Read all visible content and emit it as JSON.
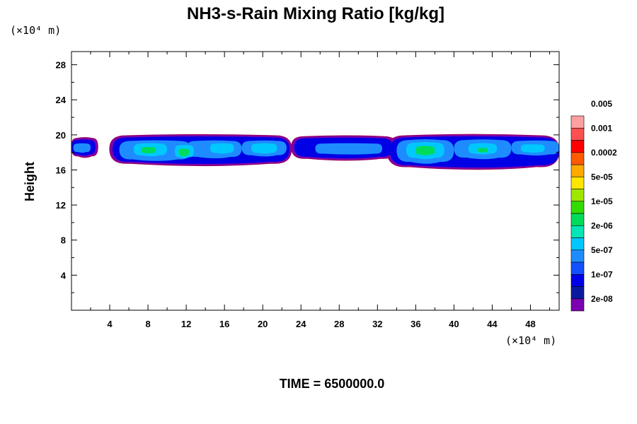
{
  "chart_data": {
    "type": "heatmap",
    "title": "NH3-s-Rain Mixing Ratio [kg/kg]",
    "ylabel": "Height",
    "x_unit_label": "(×10⁴ m)",
    "y_unit_label": "(×10⁴ m)",
    "time_label": "TIME = 6500000.0",
    "xlim": [
      0,
      51
    ],
    "ylim": [
      0,
      29.5
    ],
    "x_ticks": [
      4,
      8,
      12,
      16,
      20,
      24,
      28,
      32,
      36,
      40,
      44,
      48
    ],
    "x_tick_labels": [
      "4",
      "8",
      "12",
      "16",
      "20",
      "24",
      "28",
      "32",
      "36",
      "40",
      "44",
      "48"
    ],
    "y_ticks": [
      4,
      8,
      12,
      16,
      20,
      24,
      28
    ],
    "y_tick_labels": [
      "4",
      "8",
      "12",
      "16",
      "20",
      "24",
      "28"
    ],
    "colorbar": {
      "colors": [
        "#7a00b0",
        "#0a1aa0",
        "#0000e6",
        "#1450ff",
        "#1e8cff",
        "#00c8ff",
        "#00e6b4",
        "#00dc5a",
        "#32dc00",
        "#a0e600",
        "#ffe600",
        "#ffaa00",
        "#ff5a00",
        "#ff0000",
        "#ff5050",
        "#ffa0a0"
      ],
      "labels": [
        "2e-08",
        "1e-07",
        "5e-07",
        "2e-06",
        "1e-05",
        "5e-05",
        "0.0002",
        "0.001",
        "0.005"
      ]
    },
    "field_levels": [
      {
        "level": 0,
        "color_index": 0,
        "blobs": [
          {
            "x0": 0,
            "x1": 2.75,
            "ytop": 19.6,
            "ybot": 17.5
          },
          {
            "x0": 4.0,
            "x1": 23.0,
            "ytop": 19.9,
            "ybot": 16.6
          },
          {
            "x0": 23.0,
            "x1": 34.0,
            "ytop": 19.8,
            "ybot": 17.2
          },
          {
            "x0": 33.0,
            "x1": 51,
            "ytop": 19.9,
            "ybot": 16.2
          }
        ]
      },
      {
        "level": 1,
        "color_index": 2,
        "blobs": [
          {
            "x0": 0,
            "x1": 2.5,
            "ytop": 19.4,
            "ybot": 17.7
          },
          {
            "x0": 4.3,
            "x1": 22.8,
            "ytop": 19.7,
            "ybot": 16.8
          },
          {
            "x0": 23.3,
            "x1": 33.6,
            "ytop": 19.6,
            "ybot": 17.4
          },
          {
            "x0": 33.3,
            "x1": 51,
            "ytop": 19.7,
            "ybot": 16.4
          }
        ]
      },
      {
        "level": 2,
        "color_index": 4,
        "blobs": [
          {
            "x0": 0.2,
            "x1": 2.0,
            "ytop": 19.0,
            "ybot": 18.0
          },
          {
            "x0": 5.0,
            "x1": 12.5,
            "ytop": 19.3,
            "ybot": 17.1
          },
          {
            "x0": 12.0,
            "x1": 17.8,
            "ytop": 19.3,
            "ybot": 17.4
          },
          {
            "x0": 17.8,
            "x1": 22.5,
            "ytop": 19.3,
            "ybot": 17.6
          },
          {
            "x0": 25.5,
            "x1": 32.5,
            "ytop": 19.0,
            "ybot": 17.8
          },
          {
            "x0": 34.0,
            "x1": 40.0,
            "ytop": 19.4,
            "ybot": 16.8
          },
          {
            "x0": 40.0,
            "x1": 46.0,
            "ytop": 19.4,
            "ybot": 17.3
          },
          {
            "x0": 46.0,
            "x1": 51,
            "ytop": 19.3,
            "ybot": 17.7
          }
        ]
      },
      {
        "level": 3,
        "color_index": 5,
        "blobs": [
          {
            "x0": 6.5,
            "x1": 10.0,
            "ytop": 19.0,
            "ybot": 17.6
          },
          {
            "x0": 10.8,
            "x1": 12.8,
            "ytop": 18.8,
            "ybot": 17.4
          },
          {
            "x0": 14.5,
            "x1": 17.0,
            "ytop": 19.0,
            "ybot": 17.9
          },
          {
            "x0": 18.8,
            "x1": 21.5,
            "ytop": 19.0,
            "ybot": 17.9
          },
          {
            "x0": 35.0,
            "x1": 39.0,
            "ytop": 19.1,
            "ybot": 17.3
          },
          {
            "x0": 41.5,
            "x1": 44.5,
            "ytop": 19.0,
            "ybot": 17.8
          },
          {
            "x0": 47.0,
            "x1": 49.5,
            "ytop": 18.9,
            "ybot": 18.0
          }
        ]
      },
      {
        "level": 4,
        "color_index": 7,
        "blobs": [
          {
            "x0": 7.3,
            "x1": 8.8,
            "ytop": 18.6,
            "ybot": 17.9
          },
          {
            "x0": 11.2,
            "x1": 12.3,
            "ytop": 18.4,
            "ybot": 17.6
          },
          {
            "x0": 36.0,
            "x1": 38.0,
            "ytop": 18.7,
            "ybot": 17.7
          },
          {
            "x0": 42.5,
            "x1": 43.5,
            "ytop": 18.5,
            "ybot": 18.0
          }
        ]
      }
    ]
  }
}
